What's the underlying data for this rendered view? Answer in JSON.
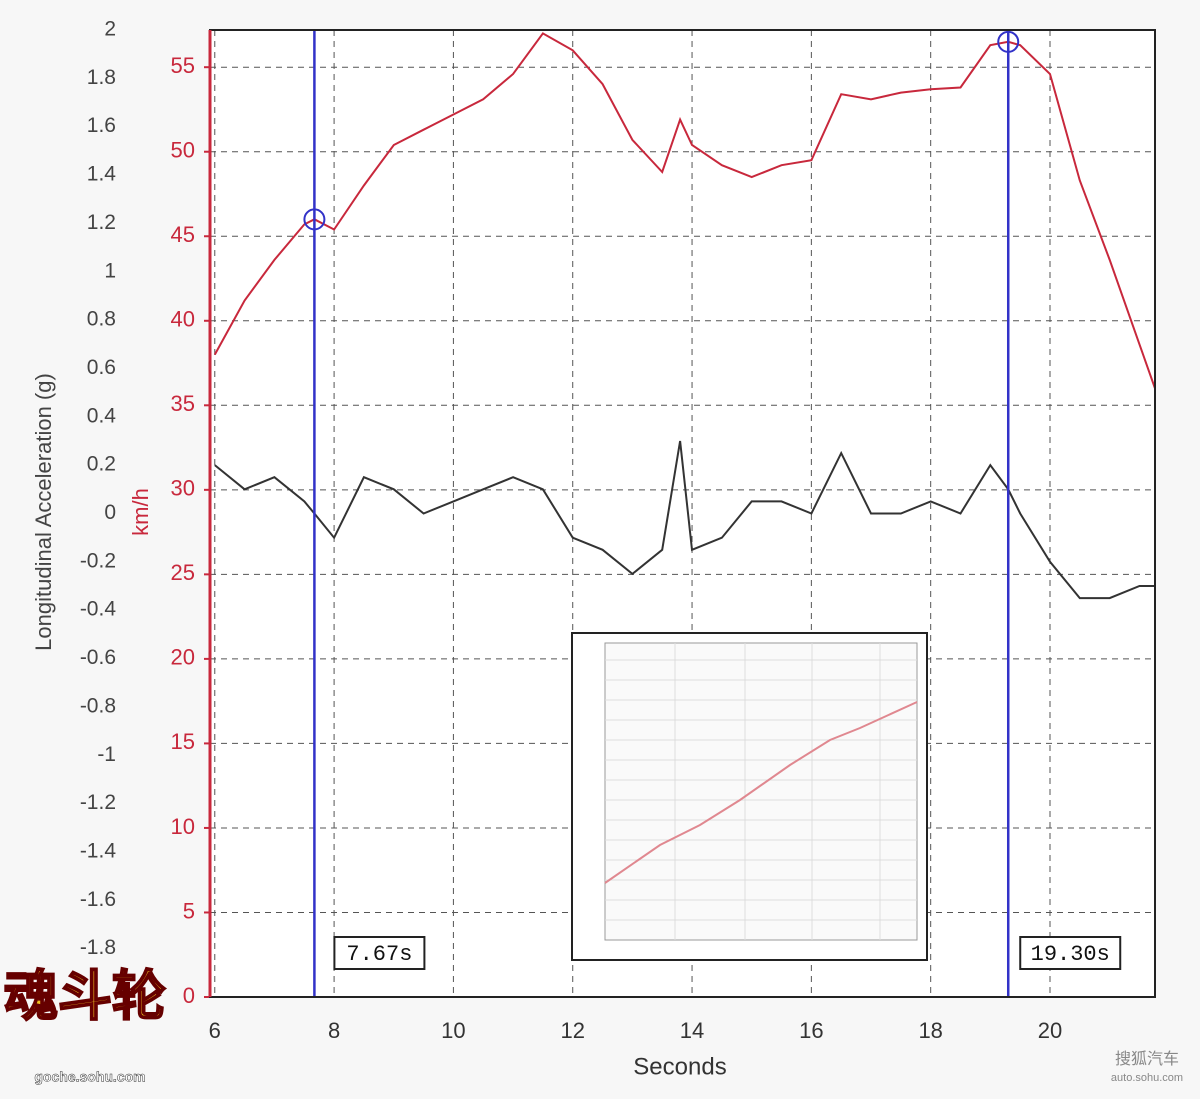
{
  "chart_data": {
    "type": "line",
    "y_label": "Longitudinal Acceleration (g)",
    "y2_label": "km/h",
    "x_label": "Seconds",
    "x": [
      6.0,
      6.5,
      7.0,
      7.5,
      7.67,
      8.0,
      8.5,
      9.0,
      9.5,
      10.0,
      10.5,
      11.0,
      11.5,
      12.0,
      12.5,
      13.0,
      13.5,
      13.8,
      14.0,
      14.5,
      15.0,
      15.5,
      16.0,
      16.5,
      17.0,
      17.5,
      18.0,
      18.5,
      19.0,
      19.3,
      19.5,
      20.0,
      20.5,
      21.0,
      21.5,
      21.76
    ],
    "series": [
      {
        "color": "#c8283c",
        "axis": "y2",
        "values": [
          38,
          41.2,
          43.6,
          45.7,
          46,
          45.4,
          48,
          50.4,
          51.3,
          52.2,
          53.1,
          54.6,
          57,
          56,
          54,
          50.7,
          48.8,
          51.9,
          50.4,
          49.2,
          48.5,
          49.2,
          49.5,
          53.4,
          53.1,
          53.5,
          53.7,
          53.8,
          56.3,
          56.5,
          56.3,
          54.6,
          48.3,
          43.6,
          38.6,
          36
        ]
      },
      {
        "color": "#333333",
        "values": [
          0.2,
          0.1,
          0.15,
          0.05,
          0.0,
          -0.1,
          0.15,
          0.1,
          0.0,
          0.05,
          0.1,
          0.15,
          0.1,
          -0.1,
          -0.15,
          -0.25,
          -0.15,
          0.3,
          -0.15,
          -0.1,
          0.05,
          0.05,
          0.0,
          0.25,
          0.0,
          0.0,
          0.05,
          0.0,
          0.2,
          0.1,
          0.0,
          -0.2,
          -0.35,
          -0.35,
          -0.3,
          -0.3
        ]
      }
    ],
    "xlim": [
      5.92,
      21.76
    ],
    "xticks": [
      6,
      8,
      10,
      12,
      14,
      16,
      18,
      20
    ],
    "ylim": [
      -2,
      2
    ],
    "yticks": [
      -1.8,
      -1.6,
      -1.4,
      -1.2,
      -1,
      -0.8,
      -0.6,
      -0.4,
      -0.2,
      0,
      0.2,
      0.4,
      0.6,
      0.8,
      1,
      1.2,
      1.4,
      1.6,
      1.8,
      2
    ],
    "y2lim": [
      0,
      57.2
    ],
    "y2ticks": [
      0,
      5,
      10,
      15,
      20,
      25,
      30,
      35,
      40,
      45,
      50,
      55
    ],
    "y2_color": "#c8283c",
    "grid": true,
    "cursors": [
      {
        "value": 7.67,
        "label": "7.67s"
      },
      {
        "value": 19.3,
        "label": "19.30s"
      }
    ],
    "cursor_color": "#3232c8"
  },
  "watermarks": {
    "logo": "魂斗轮",
    "logo_url": "goche.sohu.com",
    "brand": "搜狐汽车",
    "brand_url": "auto.sohu.com"
  }
}
